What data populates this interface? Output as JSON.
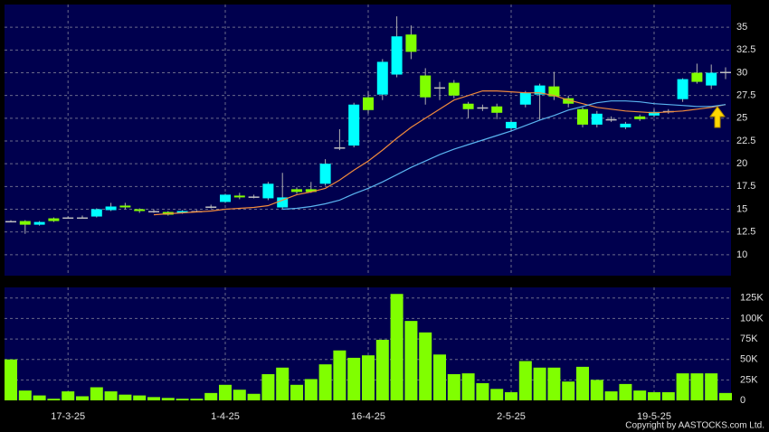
{
  "chart_data": [
    {
      "type": "candlestick",
      "categories": [
        null,
        null,
        null,
        null,
        "17-3-25",
        null,
        null,
        null,
        null,
        null,
        null,
        null,
        null,
        null,
        null,
        "1-4-25",
        null,
        null,
        null,
        null,
        null,
        null,
        null,
        null,
        null,
        "16-4-25",
        null,
        null,
        null,
        null,
        null,
        null,
        null,
        null,
        null,
        "2-5-25",
        null,
        null,
        null,
        null,
        null,
        null,
        null,
        null,
        null,
        "19-5-25",
        null,
        null,
        null,
        null,
        null
      ],
      "open": [
        13.7,
        13.7,
        13.3,
        14.0,
        14.1,
        14.1,
        14.2,
        14.9,
        15.4,
        15.0,
        14.8,
        14.7,
        14.6,
        14.8,
        15.3,
        15.8,
        16.5,
        16.4,
        16.2,
        15.2,
        17.2,
        17.2,
        17.8,
        21.8,
        22.0,
        27.3,
        27.6,
        29.8,
        34.2,
        29.7,
        28.4,
        28.9,
        26.6,
        26.2,
        26.3,
        23.9,
        26.5,
        27.6,
        28.5,
        27.2,
        26.0,
        24.3,
        24.9,
        24.0,
        25.2,
        25.3,
        25.8,
        27.1,
        30.0,
        28.6,
        30.1
      ],
      "high": [
        13.8,
        13.8,
        13.7,
        14.1,
        14.2,
        14.3,
        15.1,
        15.7,
        15.7,
        15.1,
        15.0,
        14.8,
        14.9,
        14.9,
        15.5,
        16.7,
        16.8,
        16.6,
        18.0,
        19.0,
        17.4,
        18.0,
        20.5,
        23.8,
        26.7,
        28.0,
        31.5,
        36.2,
        35.2,
        30.5,
        29.0,
        29.2,
        26.8,
        26.5,
        26.6,
        24.8,
        28.0,
        28.8,
        30.1,
        27.5,
        26.2,
        25.8,
        25.2,
        24.6,
        25.4,
        26.0,
        26.0,
        29.4,
        31.0,
        30.9,
        30.6
      ],
      "low": [
        13.6,
        12.3,
        13.2,
        13.6,
        14.0,
        14.0,
        14.1,
        14.8,
        15.0,
        14.6,
        14.6,
        14.3,
        14.5,
        14.7,
        15.1,
        15.7,
        16.1,
        16.2,
        16.0,
        15.0,
        16.7,
        16.8,
        17.6,
        21.5,
        21.8,
        25.5,
        27.0,
        29.5,
        31.5,
        26.5,
        27.0,
        27.2,
        25.0,
        25.8,
        24.9,
        23.6,
        26.2,
        24.8,
        27.0,
        26.2,
        24.0,
        24.0,
        24.6,
        23.8,
        24.7,
        25.1,
        25.5,
        26.8,
        28.8,
        28.2,
        29.3
      ],
      "close": [
        13.7,
        13.3,
        13.6,
        13.7,
        14.1,
        14.1,
        15.0,
        15.3,
        15.2,
        14.8,
        14.8,
        14.4,
        14.8,
        14.8,
        15.3,
        16.6,
        16.3,
        16.4,
        17.8,
        16.3,
        16.9,
        16.9,
        20.0,
        21.8,
        26.5,
        25.9,
        31.2,
        34.0,
        32.3,
        27.3,
        28.4,
        27.5,
        26.0,
        26.2,
        25.6,
        24.6,
        27.8,
        28.6,
        27.4,
        26.6,
        24.3,
        25.5,
        24.9,
        24.4,
        24.9,
        25.7,
        25.8,
        29.3,
        29.0,
        30.0,
        30.1
      ],
      "up_color": "#00ffff",
      "down_color": "#80ff00",
      "series": [
        {
          "color": "#f08a3c",
          "values": [
            null,
            null,
            null,
            null,
            null,
            null,
            null,
            null,
            null,
            null,
            14.4,
            14.5,
            14.6,
            14.7,
            14.8,
            15.0,
            15.1,
            15.2,
            15.4,
            16.0,
            16.6,
            16.9,
            17.3,
            18.2,
            19.3,
            20.3,
            21.5,
            22.8,
            24.0,
            25.0,
            26.0,
            27.0,
            27.5,
            28.0,
            28.0,
            27.9,
            27.8,
            27.8,
            27.5,
            27.0,
            26.6,
            26.2,
            26.0,
            25.8,
            25.7,
            25.6,
            25.7,
            25.8,
            26.0,
            26.2,
            26.5
          ]
        },
        {
          "color": "#5ab4f0",
          "values": [
            null,
            null,
            null,
            null,
            null,
            null,
            null,
            null,
            null,
            null,
            null,
            null,
            null,
            null,
            null,
            null,
            null,
            null,
            null,
            15.0,
            15.1,
            15.3,
            15.6,
            16.0,
            16.7,
            17.3,
            18.0,
            18.8,
            19.6,
            20.3,
            21.0,
            21.6,
            22.1,
            22.6,
            23.1,
            23.6,
            24.2,
            24.8,
            25.3,
            25.9,
            26.3,
            26.7,
            26.9,
            26.9,
            26.8,
            26.6,
            26.5,
            26.4,
            26.3,
            26.3,
            26.5
          ]
        }
      ],
      "ylim": [
        7.7,
        37.5
      ],
      "yticks": [
        10,
        12.5,
        15,
        17.5,
        20,
        22.5,
        25,
        27.5,
        30,
        32.5,
        35
      ],
      "grid": true
    },
    {
      "type": "bar",
      "values": [
        50000,
        12000,
        6000,
        2000,
        11000,
        5000,
        16000,
        11000,
        7000,
        6000,
        4000,
        3000,
        2000,
        2000,
        9000,
        19000,
        13000,
        8000,
        32000,
        40000,
        19000,
        26000,
        44000,
        61000,
        52000,
        55000,
        74000,
        130000,
        97000,
        83000,
        56000,
        32000,
        33000,
        21000,
        14000,
        10000,
        48000,
        40000,
        40000,
        23000,
        41000,
        25000,
        11000,
        20000,
        12000,
        10000,
        10000,
        33000,
        33000,
        33000,
        9000
      ],
      "color": "#80ff00",
      "ylim": [
        0,
        138000
      ],
      "yticks": [
        0,
        {
          "value": 25000,
          "label": "25K"
        },
        {
          "value": 50000,
          "label": "50K"
        },
        {
          "value": 75000,
          "label": "75K"
        },
        {
          "value": 100000,
          "label": "100K"
        },
        {
          "value": 125000,
          "label": "125K"
        }
      ],
      "grid": true
    }
  ],
  "copyright": "Copyright by AASTOCKS.com Ltd."
}
